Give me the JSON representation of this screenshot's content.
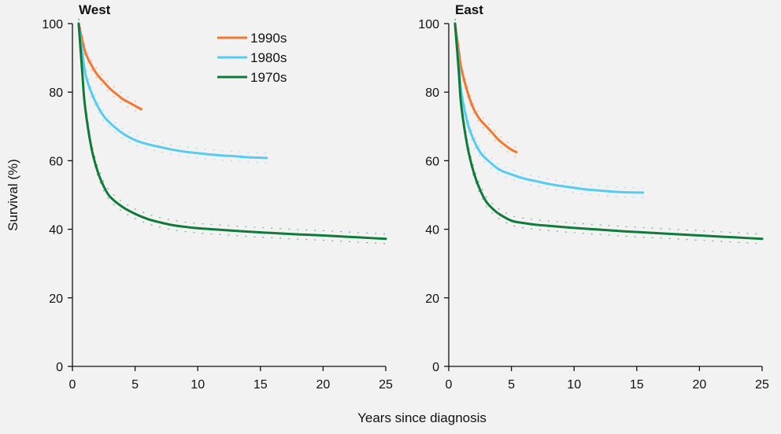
{
  "chart_data": {
    "type": "line",
    "ylabel": "Survival (%)",
    "xlabel": "Years since diagnosis",
    "xlim": [
      0,
      25
    ],
    "ylim": [
      0,
      100
    ],
    "xticks": [
      0,
      5,
      10,
      15,
      20,
      25
    ],
    "yticks": [
      0,
      20,
      40,
      60,
      80,
      100
    ],
    "legend": {
      "placement": "top, left panel",
      "entries": [
        {
          "name": "1990s",
          "color": "#f07830"
        },
        {
          "name": "1980s",
          "color": "#55ccf0"
        },
        {
          "name": "1970s",
          "color": "#0f7a3a"
        }
      ]
    },
    "panels": [
      {
        "title": "West",
        "series": [
          {
            "name": "1990s",
            "color": "#f07830",
            "x": [
              0.5,
              1,
              1.5,
              2,
              2.5,
              3,
              3.5,
              4,
              4.5,
              5,
              5.5
            ],
            "y": [
              100,
              92,
              88,
              85,
              83,
              81,
              79.5,
              78,
              77,
              76,
              75
            ]
          },
          {
            "name": "1980s",
            "color": "#55ccf0",
            "x": [
              0.5,
              1,
              1.5,
              2,
              2.5,
              3,
              4,
              5,
              6,
              7,
              8,
              9,
              10,
              11,
              12,
              13,
              14,
              15.5
            ],
            "y": [
              100,
              86,
              80,
              76,
              73,
              71,
              68,
              66,
              64.8,
              64,
              63.2,
              62.6,
              62.2,
              61.8,
              61.5,
              61.3,
              61,
              60.8
            ]
          },
          {
            "name": "1970s",
            "color": "#0f7a3a",
            "x": [
              0.5,
              0.8,
              1,
              1.5,
              2,
              2.5,
              3,
              4,
              5,
              6,
              7,
              8,
              9,
              10,
              12,
              14,
              16,
              18,
              20,
              22,
              24,
              25
            ],
            "y": [
              100,
              85,
              76,
              64,
              57,
              52.5,
              49.5,
              46.5,
              44.5,
              43,
              42,
              41.2,
              40.7,
              40.3,
              39.8,
              39.3,
              38.9,
              38.5,
              38.2,
              37.8,
              37.4,
              37.2
            ]
          }
        ]
      },
      {
        "title": "East",
        "series": [
          {
            "name": "1990s",
            "color": "#f07830",
            "x": [
              0.5,
              0.8,
              1,
              1.5,
              2,
              2.5,
              3,
              3.5,
              4,
              4.5,
              5,
              5.4
            ],
            "y": [
              100,
              92,
              87,
              80,
              75,
              72,
              70,
              68,
              66,
              64.5,
              63.2,
              62.5
            ]
          },
          {
            "name": "1980s",
            "color": "#55ccf0",
            "x": [
              0.5,
              0.8,
              1,
              1.5,
              2,
              2.5,
              3,
              4,
              5,
              6,
              7,
              8,
              9,
              10,
              11,
              12,
              13,
              14,
              15.5
            ],
            "y": [
              100,
              88,
              80,
              71,
              66,
              62.5,
              60.5,
              57.5,
              56,
              54.8,
              54,
              53.2,
              52.6,
              52.1,
              51.6,
              51.3,
              51,
              50.8,
              50.7
            ]
          },
          {
            "name": "1970s",
            "color": "#0f7a3a",
            "x": [
              0.5,
              0.8,
              1,
              1.5,
              2,
              2.5,
              3,
              3.5,
              4,
              5,
              6,
              7,
              8,
              10,
              12,
              14,
              16,
              18,
              20,
              22,
              24,
              25
            ],
            "y": [
              100,
              86,
              76,
              64,
              56.5,
              51.5,
              48,
              46,
              44.5,
              42.5,
              41.8,
              41.3,
              41,
              40.4,
              39.9,
              39.4,
              39,
              38.6,
              38.2,
              37.8,
              37.4,
              37.2
            ]
          }
        ]
      }
    ]
  }
}
